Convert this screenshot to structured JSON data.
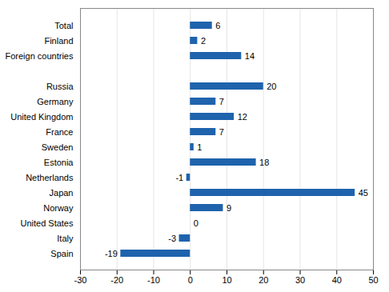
{
  "chart_data": {
    "type": "bar",
    "orientation": "horizontal",
    "categories": [
      "Total",
      "Finland",
      "Foreign countries",
      null,
      "Russia",
      "Germany",
      "United Kingdom",
      "France",
      "Sweden",
      "Estonia",
      "Netherlands",
      "Japan",
      "Norway",
      "United States",
      "Italy",
      "Spain"
    ],
    "values": [
      6,
      2,
      14,
      null,
      20,
      7,
      12,
      7,
      1,
      18,
      -1,
      45,
      9,
      0,
      -3,
      -19
    ],
    "color": "#1f63ad",
    "xlim": [
      -30,
      50
    ],
    "xticks": [
      -30,
      -20,
      -10,
      0,
      10,
      20,
      30,
      40,
      50
    ],
    "grid": true,
    "data_labels": true
  }
}
